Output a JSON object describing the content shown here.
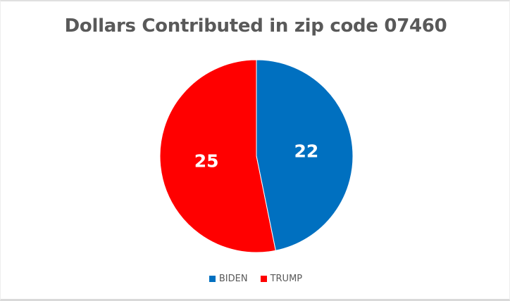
{
  "chart_data": {
    "type": "pie",
    "title": "Dollars Contributed in zip code 07460",
    "categories": [
      "BIDEN",
      "TRUMP"
    ],
    "values": [
      22,
      25
    ],
    "colors": [
      "#0070C0",
      "#FF0000"
    ],
    "data_labels": [
      "22",
      "25"
    ],
    "legend_position": "bottom"
  }
}
